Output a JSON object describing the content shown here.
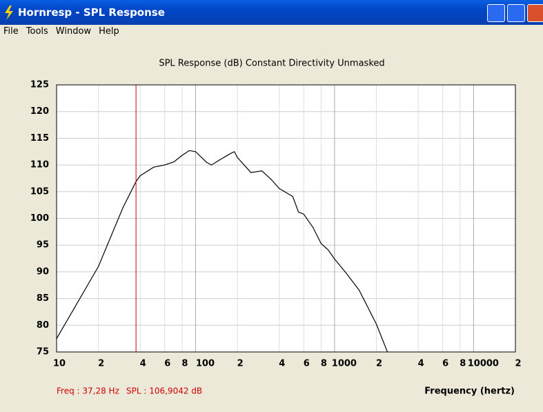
{
  "window": {
    "title": "Hornresp - SPL Response",
    "menu": [
      "File",
      "Tools",
      "Window",
      "Help"
    ]
  },
  "chart_data": {
    "type": "line",
    "title": "SPL Response (dB)   Constant Directivity   Unmasked",
    "x_label": "Frequency (hertz)",
    "xscale": "log",
    "grid": true,
    "color": "#000000",
    "x": [
      10,
      20,
      30,
      37.28,
      40,
      50,
      60,
      70,
      80,
      90,
      100,
      120,
      130,
      150,
      180,
      190,
      200,
      250,
      300,
      350,
      400,
      500,
      550,
      600,
      700,
      800,
      900,
      1000,
      1200,
      1500,
      2000,
      2400
    ],
    "values": [
      77.5,
      91,
      102,
      106.9,
      108,
      109.6,
      110,
      110.6,
      111.8,
      112.7,
      112.5,
      110.5,
      110,
      111,
      112.2,
      112.5,
      111.4,
      108.6,
      108.9,
      107.3,
      105.6,
      104.1,
      101.2,
      100.8,
      98.3,
      95.3,
      94.1,
      92.4,
      89.9,
      86.6,
      80.2,
      75
    ],
    "xlim": [
      10,
      20000
    ],
    "ylim": [
      75,
      125
    ],
    "xticks": [
      10,
      {
        "value": 20,
        "label": "2"
      },
      {
        "value": 40,
        "label": "4"
      },
      {
        "value": 60,
        "label": "6"
      },
      {
        "value": 80,
        "label": "8"
      },
      100,
      {
        "value": 200,
        "label": "2"
      },
      {
        "value": 400,
        "label": "4"
      },
      {
        "value": 600,
        "label": "6"
      },
      {
        "value": 800,
        "label": "8"
      },
      1000,
      {
        "value": 2000,
        "label": "2"
      },
      {
        "value": 4000,
        "label": "4"
      },
      {
        "value": 6000,
        "label": "6"
      },
      {
        "value": 8000,
        "label": "8"
      },
      10000,
      {
        "value": 20000,
        "label": "2"
      }
    ],
    "yticks": [
      75,
      80,
      85,
      90,
      95,
      100,
      105,
      110,
      115,
      120,
      125
    ],
    "cursor": {
      "freq": 37.28,
      "color": "#cc0000",
      "freq_label": "Freq : 37,28 Hz",
      "spl_label": "SPL : 106,9042 dB"
    }
  }
}
